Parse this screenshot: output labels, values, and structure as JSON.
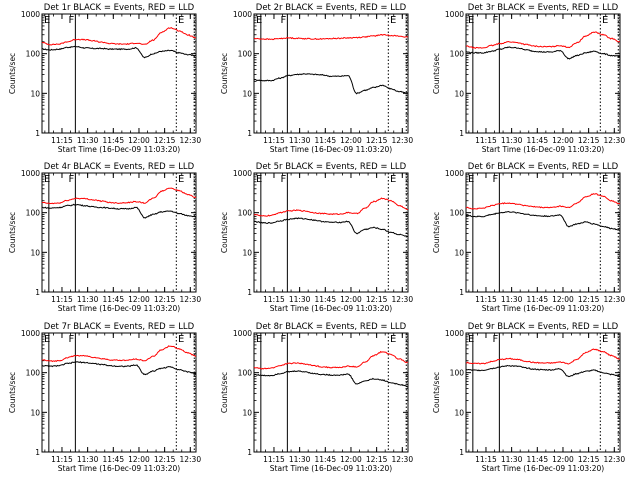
{
  "chart_data": [
    {
      "type": "line",
      "title": "Det 1r BLACK = Events, RED = LLD",
      "xlabel": "Start Time (16-Dec-09 11:03:20)",
      "ylabel": "Counts/sec",
      "yscale": "log",
      "ylim": [
        1,
        1000
      ],
      "xticks": [
        "11:15",
        "11:30",
        "11:45",
        "12:00",
        "12:15",
        "12:30"
      ],
      "flags": [
        "E",
        "F",
        "E"
      ],
      "series": [
        {
          "name": "BLACK = Events",
          "color": "#000000",
          "x_min": [
            0,
            5,
            10,
            15,
            20,
            25,
            30,
            35,
            40,
            45,
            50,
            55,
            60,
            65,
            70,
            75,
            80,
            85,
            90
          ],
          "values": [
            130,
            125,
            130,
            145,
            150,
            140,
            135,
            135,
            130,
            130,
            130,
            140,
            80,
            100,
            115,
            120,
            105,
            95,
            90
          ]
        },
        {
          "name": "RED = LLD",
          "color": "#ff0000",
          "x_min": [
            0,
            5,
            10,
            15,
            20,
            25,
            30,
            35,
            40,
            45,
            50,
            55,
            60,
            65,
            70,
            75,
            80,
            85,
            90
          ],
          "values": [
            190,
            170,
            175,
            200,
            230,
            225,
            210,
            195,
            180,
            175,
            175,
            185,
            170,
            220,
            350,
            450,
            380,
            300,
            250
          ]
        }
      ]
    },
    {
      "type": "line",
      "title": "Det 2r BLACK = Events, RED = LLD",
      "xlabel": "Start Time (16-Dec-09 11:03:20)",
      "ylabel": "Counts/sec",
      "yscale": "log",
      "ylim": [
        1,
        1000
      ],
      "xticks": [
        "11:15",
        "11:30",
        "11:45",
        "12:00",
        "12:15",
        "12:30"
      ],
      "flags": [
        "E",
        "F",
        "E"
      ],
      "series": [
        {
          "name": "BLACK = Events",
          "color": "#000000",
          "x_min": [
            0,
            5,
            10,
            15,
            20,
            25,
            30,
            35,
            40,
            45,
            50,
            55,
            60,
            65,
            70,
            75,
            80,
            85,
            90
          ],
          "values": [
            22,
            21,
            21,
            24,
            28,
            30,
            31,
            30,
            29,
            27,
            27,
            28,
            10,
            12,
            14,
            16,
            13,
            11,
            10
          ]
        },
        {
          "name": "RED = LLD",
          "color": "#ff0000",
          "x_min": [
            0,
            5,
            10,
            15,
            20,
            25,
            30,
            35,
            40,
            45,
            50,
            55,
            60,
            65,
            70,
            75,
            80,
            85,
            90
          ],
          "values": [
            240,
            235,
            230,
            240,
            250,
            245,
            240,
            235,
            235,
            240,
            245,
            250,
            255,
            265,
            280,
            300,
            290,
            275,
            260
          ]
        }
      ]
    },
    {
      "type": "line",
      "title": "Det 3r BLACK = Events, RED = LLD",
      "xlabel": "Start Time (16-Dec-09 11:03:20)",
      "ylabel": "Counts/sec",
      "yscale": "log",
      "ylim": [
        1,
        1000
      ],
      "xticks": [
        "11:15",
        "11:30",
        "11:45",
        "12:00",
        "12:15",
        "12:30"
      ],
      "flags": [
        "E",
        "F",
        "E"
      ],
      "series": [
        {
          "name": "BLACK = Events",
          "color": "#000000",
          "x_min": [
            0,
            5,
            10,
            15,
            20,
            25,
            30,
            35,
            40,
            45,
            50,
            55,
            60,
            65,
            70,
            75,
            80,
            85,
            90
          ],
          "values": [
            110,
            105,
            105,
            115,
            130,
            145,
            140,
            125,
            115,
            110,
            110,
            120,
            75,
            90,
            105,
            115,
            100,
            90,
            85
          ]
        },
        {
          "name": "RED = LLD",
          "color": "#ff0000",
          "x_min": [
            0,
            5,
            10,
            15,
            20,
            25,
            30,
            35,
            40,
            45,
            50,
            55,
            60,
            65,
            70,
            75,
            80,
            85,
            90
          ],
          "values": [
            155,
            140,
            140,
            160,
            180,
            200,
            190,
            170,
            155,
            150,
            150,
            160,
            145,
            190,
            280,
            350,
            300,
            240,
            200
          ]
        }
      ]
    },
    {
      "type": "line",
      "title": "Det 4r BLACK = Events, RED = LLD",
      "xlabel": "Start Time (16-Dec-09 11:03:20)",
      "ylabel": "Counts/sec",
      "yscale": "log",
      "ylim": [
        1,
        1000
      ],
      "xticks": [
        "11:15",
        "11:30",
        "11:45",
        "12:00",
        "12:15",
        "12:30"
      ],
      "flags": [
        "E",
        "F",
        "E"
      ],
      "series": [
        {
          "name": "BLACK = Events",
          "color": "#000000",
          "x_min": [
            0,
            5,
            10,
            15,
            20,
            25,
            30,
            35,
            40,
            45,
            50,
            55,
            60,
            65,
            70,
            75,
            80,
            85,
            90
          ],
          "values": [
            135,
            130,
            135,
            150,
            160,
            150,
            140,
            135,
            130,
            125,
            125,
            135,
            75,
            90,
            105,
            110,
            95,
            85,
            80
          ]
        },
        {
          "name": "RED = LLD",
          "color": "#ff0000",
          "x_min": [
            0,
            5,
            10,
            15,
            20,
            25,
            30,
            35,
            40,
            45,
            50,
            55,
            60,
            65,
            70,
            75,
            80,
            85,
            90
          ],
          "values": [
            180,
            170,
            175,
            205,
            230,
            225,
            210,
            195,
            180,
            175,
            180,
            190,
            175,
            230,
            350,
            420,
            360,
            290,
            240
          ]
        }
      ]
    },
    {
      "type": "line",
      "title": "Det 5r BLACK = Events, RED = LLD",
      "xlabel": "Start Time (16-Dec-09 11:03:20)",
      "ylabel": "Counts/sec",
      "yscale": "log",
      "ylim": [
        1,
        1000
      ],
      "xticks": [
        "11:15",
        "11:30",
        "11:45",
        "12:00",
        "12:15",
        "12:30"
      ],
      "flags": [
        "E",
        "F",
        "E"
      ],
      "series": [
        {
          "name": "BLACK = Events",
          "color": "#000000",
          "x_min": [
            0,
            5,
            10,
            15,
            20,
            25,
            30,
            35,
            40,
            45,
            50,
            55,
            60,
            65,
            70,
            75,
            80,
            85,
            90
          ],
          "values": [
            60,
            55,
            55,
            62,
            68,
            72,
            70,
            65,
            60,
            57,
            57,
            60,
            30,
            38,
            42,
            38,
            32,
            28,
            25
          ]
        },
        {
          "name": "RED = LLD",
          "color": "#ff0000",
          "x_min": [
            0,
            5,
            10,
            15,
            20,
            25,
            30,
            35,
            40,
            45,
            50,
            55,
            60,
            65,
            70,
            75,
            80,
            85,
            90
          ],
          "values": [
            90,
            82,
            85,
            100,
            110,
            115,
            110,
            100,
            95,
            92,
            92,
            100,
            95,
            130,
            190,
            230,
            200,
            150,
            120
          ]
        }
      ]
    },
    {
      "type": "line",
      "title": "Det 6r BLACK = Events, RED = LLD",
      "xlabel": "Start Time (16-Dec-09 11:03:20)",
      "ylabel": "Counts/sec",
      "yscale": "log",
      "ylim": [
        1,
        1000
      ],
      "xticks": [
        "11:15",
        "11:30",
        "11:45",
        "12:00",
        "12:15",
        "12:30"
      ],
      "flags": [
        "E",
        "F",
        "E"
      ],
      "series": [
        {
          "name": "BLACK = Events",
          "color": "#000000",
          "x_min": [
            0,
            5,
            10,
            15,
            20,
            25,
            30,
            35,
            40,
            45,
            50,
            55,
            60,
            65,
            70,
            75,
            80,
            85,
            90
          ],
          "values": [
            85,
            80,
            80,
            90,
            100,
            105,
            100,
            92,
            85,
            82,
            82,
            88,
            45,
            52,
            58,
            52,
            45,
            40,
            37
          ]
        },
        {
          "name": "RED = LLD",
          "color": "#ff0000",
          "x_min": [
            0,
            5,
            10,
            15,
            20,
            25,
            30,
            35,
            40,
            45,
            50,
            55,
            60,
            65,
            70,
            75,
            80,
            85,
            90
          ],
          "values": [
            135,
            125,
            130,
            150,
            170,
            175,
            165,
            150,
            140,
            135,
            135,
            145,
            135,
            175,
            250,
            300,
            260,
            200,
            165
          ]
        }
      ]
    },
    {
      "type": "line",
      "title": "Det 7r BLACK = Events, RED = LLD",
      "xlabel": "Start Time (16-Dec-09 11:03:20)",
      "ylabel": "Counts/sec",
      "yscale": "log",
      "ylim": [
        1,
        1000
      ],
      "xticks": [
        "11:15",
        "11:30",
        "11:45",
        "12:00",
        "12:15",
        "12:30"
      ],
      "flags": [
        "E",
        "F",
        "E"
      ],
      "series": [
        {
          "name": "BLACK = Events",
          "color": "#000000",
          "x_min": [
            0,
            5,
            10,
            15,
            20,
            25,
            30,
            35,
            40,
            45,
            50,
            55,
            60,
            65,
            70,
            75,
            80,
            85,
            90
          ],
          "values": [
            150,
            145,
            150,
            170,
            185,
            180,
            170,
            160,
            150,
            145,
            145,
            155,
            90,
            110,
            130,
            140,
            120,
            105,
            95
          ]
        },
        {
          "name": "RED = LLD",
          "color": "#ff0000",
          "x_min": [
            0,
            5,
            10,
            15,
            20,
            25,
            30,
            35,
            40,
            45,
            50,
            55,
            60,
            65,
            70,
            75,
            80,
            85,
            90
          ],
          "values": [
            210,
            195,
            200,
            240,
            270,
            265,
            245,
            225,
            210,
            205,
            205,
            220,
            200,
            260,
            380,
            470,
            400,
            320,
            260
          ]
        }
      ]
    },
    {
      "type": "line",
      "title": "Det 8r BLACK = Events, RED = LLD",
      "xlabel": "Start Time (16-Dec-09 11:03:20)",
      "ylabel": "Counts/sec",
      "yscale": "log",
      "ylim": [
        1,
        1000
      ],
      "xticks": [
        "11:15",
        "11:30",
        "11:45",
        "12:00",
        "12:15",
        "12:30"
      ],
      "flags": [
        "E",
        "F",
        "E"
      ],
      "series": [
        {
          "name": "BLACK = Events",
          "color": "#000000",
          "x_min": [
            0,
            5,
            10,
            15,
            20,
            25,
            30,
            35,
            40,
            45,
            50,
            55,
            60,
            65,
            70,
            75,
            80,
            85,
            90
          ],
          "values": [
            90,
            85,
            85,
            95,
            105,
            110,
            105,
            95,
            90,
            87,
            87,
            92,
            52,
            62,
            70,
            65,
            56,
            50,
            45
          ]
        },
        {
          "name": "RED = LLD",
          "color": "#ff0000",
          "x_min": [
            0,
            5,
            10,
            15,
            20,
            25,
            30,
            35,
            40,
            45,
            50,
            55,
            60,
            65,
            70,
            75,
            80,
            85,
            90
          ],
          "values": [
            135,
            125,
            130,
            150,
            170,
            175,
            165,
            150,
            140,
            135,
            135,
            145,
            140,
            185,
            270,
            340,
            290,
            220,
            180
          ]
        }
      ]
    },
    {
      "type": "line",
      "title": "Det 9r BLACK = Events, RED = LLD",
      "xlabel": "Start Time (16-Dec-09 11:03:20)",
      "ylabel": "Counts/sec",
      "yscale": "log",
      "ylim": [
        1,
        1000
      ],
      "xticks": [
        "11:15",
        "11:30",
        "11:45",
        "12:00",
        "12:15",
        "12:30"
      ],
      "flags": [
        "E",
        "F",
        "E"
      ],
      "series": [
        {
          "name": "BLACK = Events",
          "color": "#000000",
          "x_min": [
            0,
            5,
            10,
            15,
            20,
            25,
            30,
            35,
            40,
            45,
            50,
            55,
            60,
            65,
            70,
            75,
            80,
            85,
            90
          ],
          "values": [
            120,
            115,
            115,
            128,
            140,
            150,
            145,
            132,
            122,
            118,
            118,
            125,
            80,
            95,
            108,
            115,
            100,
            90,
            82
          ]
        },
        {
          "name": "RED = LLD",
          "color": "#ff0000",
          "x_min": [
            0,
            5,
            10,
            15,
            20,
            25,
            30,
            35,
            40,
            45,
            50,
            55,
            60,
            65,
            70,
            75,
            80,
            85,
            90
          ],
          "values": [
            180,
            170,
            170,
            190,
            215,
            225,
            215,
            195,
            180,
            175,
            175,
            185,
            170,
            220,
            320,
            390,
            340,
            270,
            220
          ]
        }
      ]
    }
  ]
}
